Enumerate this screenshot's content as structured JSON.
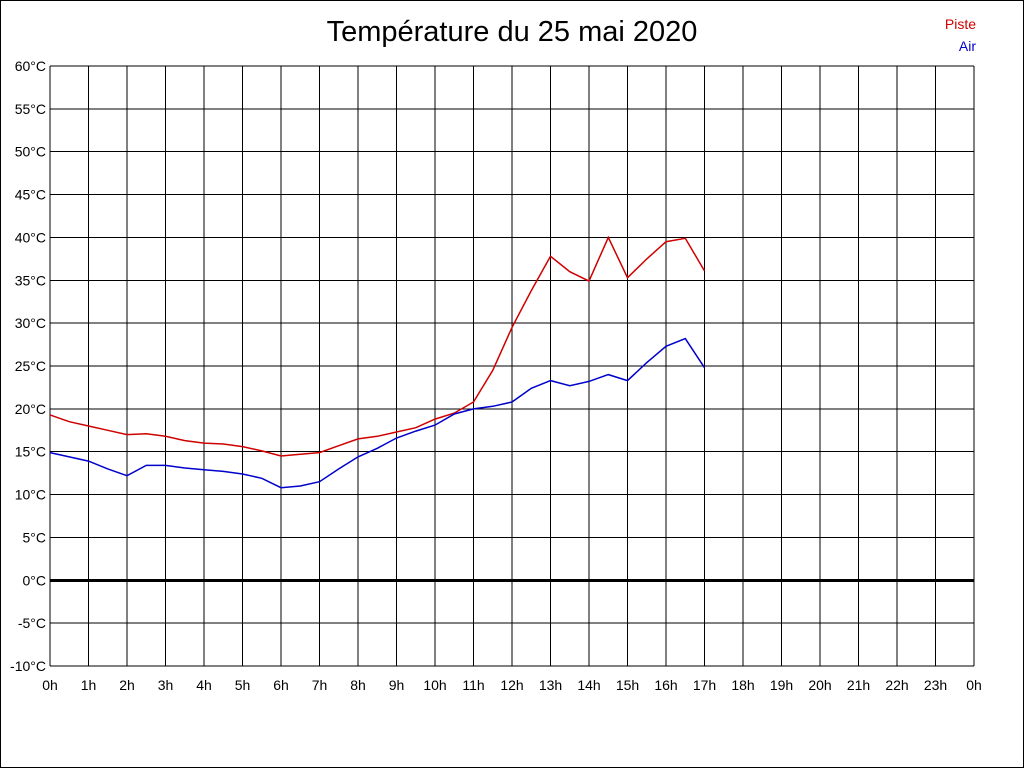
{
  "chart_data": {
    "type": "line",
    "title": "Température du 25 mai 2020",
    "xlabel": "",
    "ylabel": "",
    "x_ticks": [
      "0h",
      "1h",
      "2h",
      "3h",
      "4h",
      "5h",
      "6h",
      "7h",
      "8h",
      "9h",
      "10h",
      "11h",
      "12h",
      "13h",
      "14h",
      "15h",
      "16h",
      "17h",
      "18h",
      "19h",
      "20h",
      "21h",
      "22h",
      "23h",
      "0h"
    ],
    "y_ticks": [
      "60°C",
      "55°C",
      "50°C",
      "45°C",
      "40°C",
      "35°C",
      "30°C",
      "25°C",
      "20°C",
      "15°C",
      "10°C",
      "5°C",
      "0°C",
      "-5°C",
      "-10°C"
    ],
    "xlim": [
      0,
      24
    ],
    "ylim": [
      -10,
      60
    ],
    "grid": true,
    "legend_position": "top-right",
    "series": [
      {
        "name": "Piste",
        "color": "#d00000",
        "x": [
          0,
          0.5,
          1,
          1.5,
          2,
          2.5,
          3,
          3.5,
          4,
          4.5,
          5,
          5.5,
          6,
          6.5,
          7,
          7.5,
          8,
          8.5,
          9,
          9.5,
          10,
          10.5,
          11,
          11.5,
          12,
          12.5,
          13,
          13.5,
          14,
          14.5,
          15,
          15.5,
          16,
          16.5,
          17
        ],
        "y": [
          19.3,
          18.5,
          18,
          17.5,
          17,
          17.1,
          16.8,
          16.3,
          16,
          15.9,
          15.6,
          15.1,
          14.5,
          14.7,
          14.9,
          15.7,
          16.5,
          16.8,
          17.3,
          17.8,
          18.8,
          19.5,
          20.8,
          24.5,
          29.5,
          33.8,
          37.8,
          36,
          34.9,
          40,
          35.3,
          37.5,
          39.5,
          39.9,
          36.1
        ]
      },
      {
        "name": "Air",
        "color": "#0000cc",
        "x": [
          0,
          0.5,
          1,
          1.5,
          2,
          2.5,
          3,
          3.5,
          4,
          4.5,
          5,
          5.5,
          6,
          6.5,
          7,
          7.5,
          8,
          8.5,
          9,
          9.5,
          10,
          10.5,
          11,
          11.5,
          12,
          12.5,
          13,
          13.5,
          14,
          14.5,
          15,
          15.5,
          16,
          16.5,
          17
        ],
        "y": [
          14.9,
          14.4,
          13.9,
          13,
          12.2,
          13.4,
          13.4,
          13.1,
          12.9,
          12.7,
          12.4,
          11.9,
          10.8,
          11,
          11.5,
          13,
          14.4,
          15.4,
          16.6,
          17.4,
          18.1,
          19.4,
          20,
          20.3,
          20.8,
          22.4,
          23.3,
          22.7,
          23.2,
          24,
          23.3,
          25.4,
          27.3,
          28.2,
          24.8
        ]
      }
    ]
  }
}
